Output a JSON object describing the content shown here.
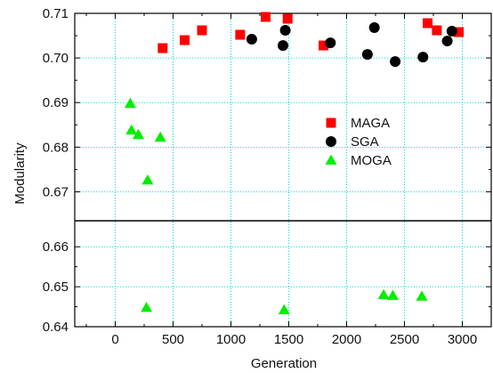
{
  "chart_data": {
    "type": "scatter",
    "title": "",
    "xlabel": "Generation",
    "ylabel": "Modularity",
    "xlim": [
      -350,
      3250
    ],
    "ylim": [
      0.64,
      0.71
    ],
    "x_ticks": [
      0,
      500,
      1000,
      1500,
      2000,
      2500,
      3000
    ],
    "x_tick_labels": [
      "0",
      "500",
      "1000",
      "1500",
      "2000",
      "2500",
      "3000"
    ],
    "y_ticks": [
      0.64,
      0.65,
      0.66,
      0.67,
      0.68,
      0.69,
      0.7,
      0.71
    ],
    "y_tick_labels": [
      "0.64",
      "0.65",
      "0.66",
      "0.67",
      "0.68",
      "0.69",
      "0.70",
      "0.71"
    ],
    "y_scale": "broken",
    "y_segments": [
      {
        "range": [
          0.64,
          0.6665
        ]
      },
      {
        "range": [
          0.6635,
          0.71
        ]
      }
    ],
    "grid": "cyan dotted",
    "legend_position": "center-right",
    "series": [
      {
        "name": "MAGA",
        "marker": "square",
        "color": "#ff0000",
        "points": [
          [
            410,
            0.7022
          ],
          [
            600,
            0.704
          ],
          [
            750,
            0.7062
          ],
          [
            1080,
            0.7052
          ],
          [
            1300,
            0.7092
          ],
          [
            1490,
            0.7088
          ],
          [
            1800,
            0.7028
          ],
          [
            2700,
            0.7078
          ],
          [
            2780,
            0.7062
          ],
          [
            2970,
            0.7058
          ]
        ]
      },
      {
        "name": "SGA",
        "marker": "circle",
        "color": "#000000",
        "points": [
          [
            1180,
            0.7042
          ],
          [
            1450,
            0.7028
          ],
          [
            1470,
            0.7062
          ],
          [
            1860,
            0.7034
          ],
          [
            2180,
            0.7008
          ],
          [
            2240,
            0.7068
          ],
          [
            2420,
            0.6992
          ],
          [
            2660,
            0.7002
          ],
          [
            2870,
            0.7038
          ],
          [
            2910,
            0.706
          ]
        ]
      },
      {
        "name": "MOGA",
        "marker": "triangle",
        "color": "#00ee00",
        "points": [
          [
            130,
            0.6898
          ],
          [
            140,
            0.6838
          ],
          [
            200,
            0.6828
          ],
          [
            280,
            0.6726
          ],
          [
            390,
            0.6822
          ],
          [
            270,
            0.6448
          ],
          [
            1460,
            0.6442
          ],
          [
            2320,
            0.648
          ],
          [
            2400,
            0.6478
          ],
          [
            2650,
            0.6476
          ]
        ]
      }
    ]
  }
}
